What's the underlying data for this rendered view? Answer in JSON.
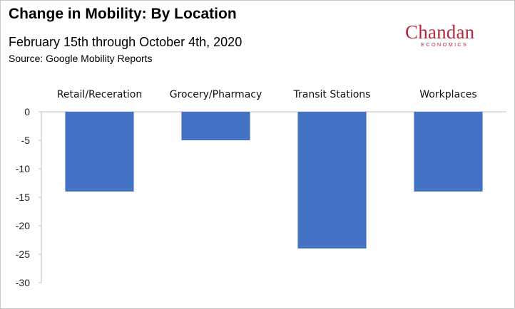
{
  "header": {
    "title": "Change in Mobility: By Location",
    "subtitle": "February 15th through October 4th, 2020",
    "source": "Source: Google Mobility Reports"
  },
  "logo": {
    "word": "Chandan",
    "sub": "ECONOMICS",
    "color": "#b5283a"
  },
  "chart_data": {
    "type": "bar",
    "categories": [
      "Retail/Receration",
      "Grocery/Pharmacy",
      "Transit Stations",
      "Workplaces"
    ],
    "values": [
      -14,
      -5,
      -24,
      -14
    ],
    "ylim": [
      -30,
      0
    ],
    "yticks": [
      0,
      -5,
      -10,
      -15,
      -20,
      -25,
      -30
    ],
    "category_labels_position": "top",
    "grid": false,
    "bar_color": "#4472c4"
  }
}
